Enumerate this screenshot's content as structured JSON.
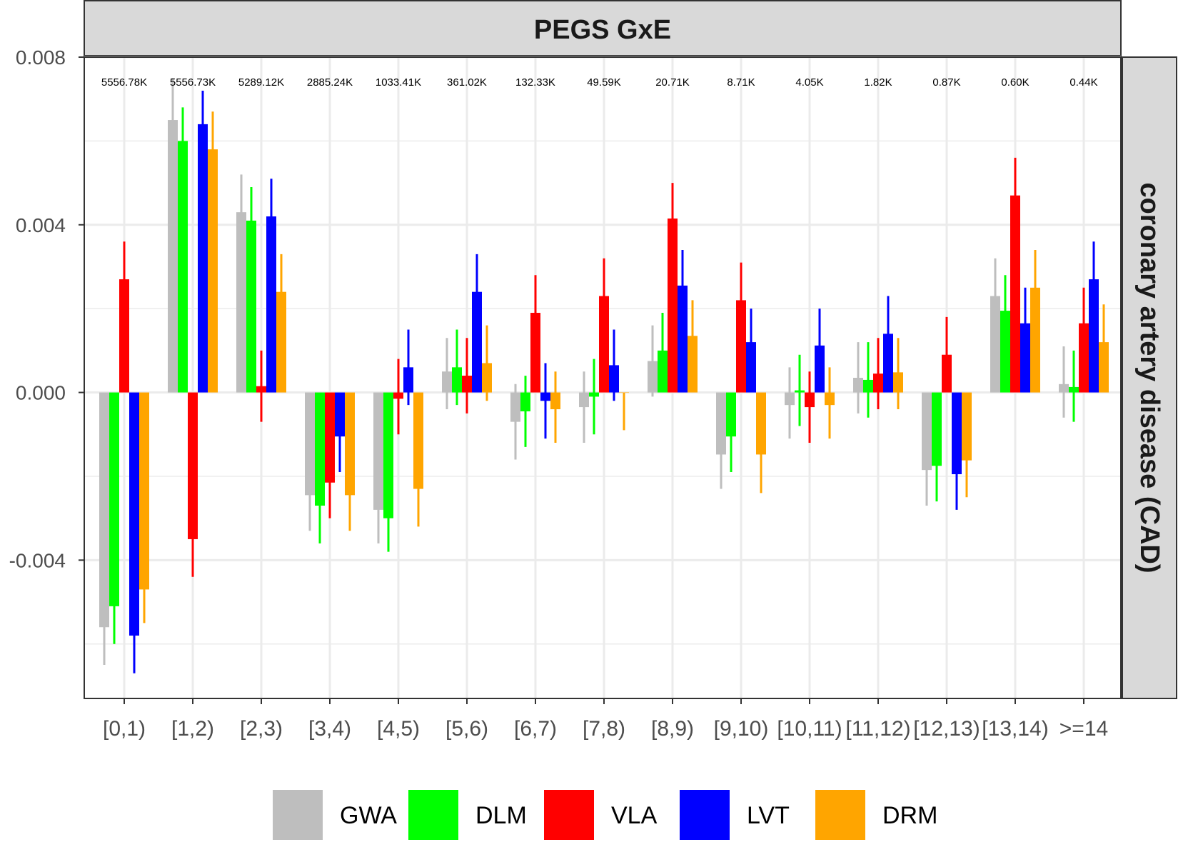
{
  "colors": {
    "GWA": "#BEBEBE",
    "DLM": "#00FF00",
    "VLA": "#FF0000",
    "LVT": "#0000FF",
    "DRM": "#FFA500",
    "strip_fill": "#D9D9D9",
    "grid": "#EBEBEB",
    "panel_border": "#333333"
  },
  "chart_data": {
    "type": "bar",
    "title": "PEGS GxE",
    "facet_label_right": "coronary artery disease (CAD)",
    "xlabel": "",
    "ylabel": "",
    "ylim": [
      -0.0073,
      0.008
    ],
    "yticks": [
      -0.004,
      0.0,
      0.004,
      0.008
    ],
    "ytick_labels": [
      "-0.004",
      "0.000",
      "0.004",
      "0.008"
    ],
    "grid": true,
    "legend_position": "bottom",
    "categories": [
      "[0,1)",
      "[1,2)",
      "[2,3)",
      "[3,4)",
      "[4,5)",
      "[5,6)",
      "[6,7)",
      "[7,8)",
      "[8,9)",
      "[9,10)",
      "[10,11)",
      "[11,12)",
      "[12,13)",
      "[13,14)",
      ">=14"
    ],
    "counts": [
      "5556.78K",
      "5556.73K",
      "5289.12K",
      "2885.24K",
      "1033.41K",
      "361.02K",
      "132.33K",
      "49.59K",
      "20.71K",
      "8.71K",
      "4.05K",
      "1.82K",
      "0.87K",
      "0.60K",
      "0.44K"
    ],
    "series": [
      {
        "name": "GWA",
        "values": [
          -0.0056,
          0.0065,
          0.0043,
          -0.00245,
          -0.0028,
          0.0005,
          -0.0007,
          -0.00035,
          0.00075,
          -0.00148,
          -0.0003,
          0.00035,
          -0.00185,
          0.0023,
          0.0002
        ],
        "err_low": [
          -0.0065,
          0.0055,
          0.0033,
          -0.0033,
          -0.0036,
          -0.0004,
          -0.0016,
          -0.0012,
          -0.0001,
          -0.0023,
          -0.0011,
          -0.0005,
          -0.0027,
          0.0014,
          -0.0006
        ],
        "err_high": [
          -0.0047,
          0.0075,
          0.0052,
          -0.0015,
          -0.0019,
          0.0013,
          0.0002,
          0.0005,
          0.0016,
          -0.0006,
          0.0006,
          0.0012,
          -0.001,
          0.0032,
          0.0011
        ]
      },
      {
        "name": "DLM",
        "values": [
          -0.0051,
          0.006,
          0.0041,
          -0.0027,
          -0.003,
          0.0006,
          -0.00045,
          -0.0001,
          0.001,
          -0.00105,
          5e-05,
          0.0003,
          -0.00175,
          0.00195,
          0.00013
        ],
        "err_low": [
          -0.006,
          0.0052,
          0.0033,
          -0.0036,
          -0.0038,
          -0.0003,
          -0.0013,
          -0.001,
          0.0001,
          -0.0019,
          -0.0008,
          -0.0006,
          -0.0026,
          0.0011,
          -0.0007
        ],
        "err_high": [
          -0.0042,
          0.0068,
          0.0049,
          -0.0019,
          -0.0021,
          0.0015,
          0.0004,
          0.0008,
          0.0019,
          -0.0002,
          0.0009,
          0.0012,
          -0.0009,
          0.0028,
          0.001
        ]
      },
      {
        "name": "VLA",
        "values": [
          0.0027,
          -0.0035,
          0.00015,
          -0.00215,
          -0.00015,
          0.0004,
          0.0019,
          0.0023,
          0.00415,
          0.0022,
          -0.00035,
          0.00045,
          0.0009,
          0.0047,
          0.00165
        ],
        "err_low": [
          0.0018,
          -0.0044,
          -0.0007,
          -0.003,
          -0.001,
          -0.0005,
          0.001,
          0.0014,
          0.0033,
          0.0013,
          -0.0012,
          -0.0004,
          0.0,
          0.0038,
          0.0008
        ],
        "err_high": [
          0.0036,
          -0.0027,
          0.001,
          -0.0013,
          0.0008,
          0.0013,
          0.0028,
          0.0032,
          0.005,
          0.0031,
          0.0005,
          0.0013,
          0.0018,
          0.0056,
          0.0025
        ]
      },
      {
        "name": "LVT",
        "values": [
          -0.0058,
          0.0064,
          0.0042,
          -0.00105,
          0.0006,
          0.0024,
          -0.0002,
          0.00065,
          0.00255,
          0.0012,
          0.00112,
          0.0014,
          -0.00195,
          0.00165,
          0.0027
        ],
        "err_low": [
          -0.0067,
          0.0056,
          0.0033,
          -0.0019,
          -0.0003,
          0.0015,
          -0.0011,
          -0.0002,
          0.0017,
          0.0004,
          0.0002,
          0.0005,
          -0.0028,
          0.0008,
          0.0018
        ],
        "err_high": [
          -0.0049,
          0.0072,
          0.0051,
          -0.0002,
          0.0015,
          0.0033,
          0.0007,
          0.0015,
          0.0034,
          0.002,
          0.002,
          0.0023,
          -0.0011,
          0.0025,
          0.0036
        ]
      },
      {
        "name": "DRM",
        "values": [
          -0.0047,
          0.0058,
          0.0024,
          -0.00245,
          -0.0023,
          0.0007,
          -0.0004,
          0.0,
          0.00135,
          -0.00148,
          -0.0003,
          0.00048,
          -0.00162,
          0.0025,
          0.0012
        ],
        "err_low": [
          -0.0055,
          0.0049,
          0.0015,
          -0.0033,
          -0.0032,
          -0.0002,
          -0.0012,
          -0.0009,
          0.0004,
          -0.0024,
          -0.0011,
          -0.0004,
          -0.0025,
          0.0016,
          0.0003
        ],
        "err_high": [
          -0.0039,
          0.0067,
          0.0033,
          -0.0016,
          -0.0014,
          0.0016,
          0.0005,
          0.0,
          0.0022,
          -0.0006,
          0.0006,
          0.0013,
          -0.0008,
          0.0034,
          0.0021
        ]
      }
    ]
  }
}
